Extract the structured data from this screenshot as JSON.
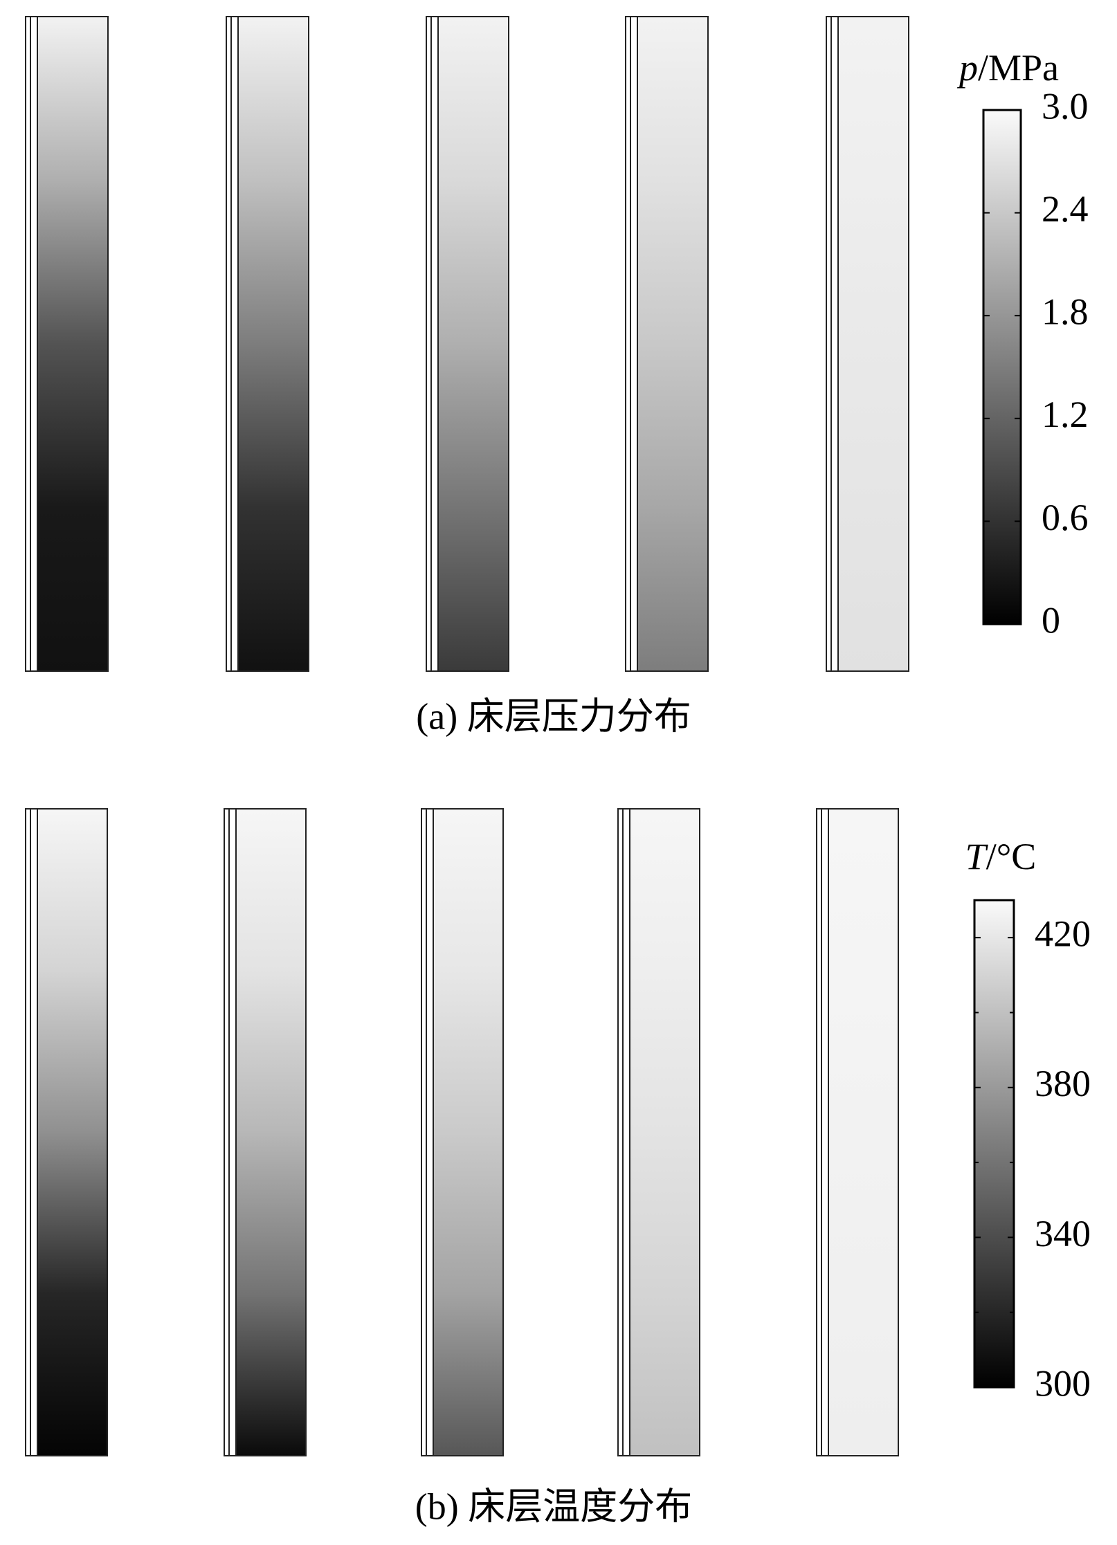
{
  "chart_data": [
    {
      "type": "profile-bars",
      "caption": "(a) 床层压力分布",
      "colorbar_symbol": "p",
      "colorbar_unit": "/MPa",
      "ylim": [
        0,
        3
      ],
      "yticks": [
        0,
        0.6,
        1.2,
        1.8,
        2.4,
        {
          "value": 3,
          "label": "3.0"
        }
      ],
      "minor_ticks": [],
      "series": [
        {
          "values": [
            2.9,
            2.1,
            1.0,
            0.3,
            0.2
          ]
        },
        {
          "values": [
            2.9,
            2.3,
            1.5,
            0.6,
            0.2
          ]
        },
        {
          "values": [
            2.9,
            2.6,
            2.1,
            1.4,
            0.7
          ]
        },
        {
          "values": [
            2.9,
            2.7,
            2.4,
            2.0,
            1.5
          ]
        },
        {
          "values": [
            2.9,
            2.85,
            2.8,
            2.75,
            2.7
          ]
        }
      ]
    },
    {
      "type": "profile-bars",
      "caption": "(b) 床层温度分布",
      "colorbar_symbol": "T",
      "colorbar_unit": "/°C",
      "ylim": [
        300,
        430
      ],
      "yticks": [
        300,
        340,
        380,
        420
      ],
      "minor_ticks": [
        320,
        360,
        400
      ],
      "series": [
        {
          "values": [
            428,
            410,
            375,
            320,
            302
          ]
        },
        {
          "values": [
            428,
            418,
            395,
            360,
            305
          ]
        },
        {
          "values": [
            428,
            420,
            405,
            385,
            345
          ]
        },
        {
          "values": [
            428,
            424,
            418,
            410,
            400
          ]
        },
        {
          "values": [
            428,
            427,
            426,
            425,
            424
          ]
        }
      ]
    }
  ]
}
